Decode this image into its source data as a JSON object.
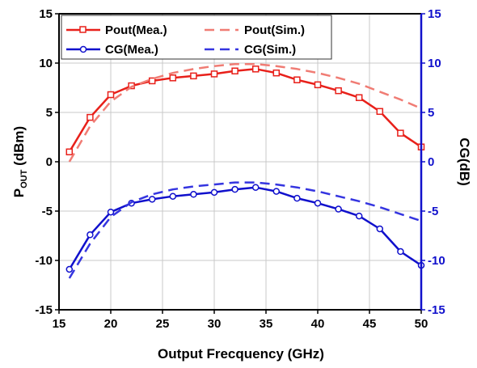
{
  "chart_data": {
    "type": "line",
    "xlabel": "Output Frecquency (GHz)",
    "ylabel_left": {
      "main": "P",
      "sub": "OUT",
      "rest": " (dBm)"
    },
    "ylabel_right": "CG(dB)",
    "xlim": [
      15,
      50
    ],
    "ylim_left": [
      -15,
      15
    ],
    "ylim_right": [
      -15,
      15
    ],
    "x_ticks": [
      "15",
      "20",
      "25",
      "30",
      "35",
      "40",
      "45",
      "50"
    ],
    "y_ticks_left": [
      "-15",
      "-10",
      "-5",
      "0",
      "5",
      "10",
      "15"
    ],
    "y_ticks_right": [
      "-15",
      "-10",
      "-5",
      "0",
      "5",
      "10",
      "15"
    ],
    "grid": true,
    "legend_position": "top",
    "colors": {
      "pout": "#e8201a",
      "pout_sim": "#f07c74",
      "cg": "#1010cc",
      "cg_sim": "#3535e0"
    },
    "series": [
      {
        "name": "Pout(Mea.)",
        "style": "solid-square",
        "color": "#e8201a",
        "x": [
          16,
          18,
          20,
          22,
          24,
          26,
          28,
          30,
          32,
          34,
          36,
          38,
          40,
          42,
          44,
          46,
          48,
          50
        ],
        "y": [
          1.0,
          4.5,
          6.8,
          7.7,
          8.2,
          8.5,
          8.7,
          8.9,
          9.2,
          9.4,
          9.0,
          8.3,
          7.8,
          7.2,
          6.5,
          5.1,
          2.9,
          1.5
        ]
      },
      {
        "name": "Pout(Sim.)",
        "style": "dashed",
        "color": "#f07c74",
        "x": [
          16,
          18,
          20,
          22,
          24,
          26,
          28,
          30,
          32,
          34,
          36,
          38,
          40,
          42,
          44,
          46,
          48,
          50
        ],
        "y": [
          0.0,
          3.6,
          6.1,
          7.6,
          8.4,
          9.0,
          9.4,
          9.7,
          9.9,
          9.9,
          9.7,
          9.4,
          9.0,
          8.5,
          7.9,
          7.1,
          6.3,
          5.4
        ]
      },
      {
        "name": "CG(Mea.)",
        "style": "solid-circle",
        "color": "#1010cc",
        "x": [
          16,
          18,
          20,
          22,
          24,
          26,
          28,
          30,
          32,
          34,
          36,
          38,
          40,
          42,
          44,
          46,
          48,
          50
        ],
        "y": [
          -10.9,
          -7.4,
          -5.1,
          -4.2,
          -3.8,
          -3.5,
          -3.3,
          -3.1,
          -2.8,
          -2.6,
          -3.0,
          -3.7,
          -4.2,
          -4.8,
          -5.5,
          -6.8,
          -9.1,
          -10.5
        ]
      },
      {
        "name": "CG(Sim.)",
        "style": "dashed",
        "color": "#3535e0",
        "x": [
          16,
          18,
          20,
          22,
          24,
          26,
          28,
          30,
          32,
          34,
          36,
          38,
          40,
          42,
          44,
          46,
          48,
          50
        ],
        "y": [
          -11.8,
          -8.3,
          -5.6,
          -4.1,
          -3.3,
          -2.8,
          -2.5,
          -2.3,
          -2.1,
          -2.1,
          -2.3,
          -2.6,
          -3.0,
          -3.5,
          -4.0,
          -4.6,
          -5.3,
          -6.0
        ]
      }
    ]
  }
}
